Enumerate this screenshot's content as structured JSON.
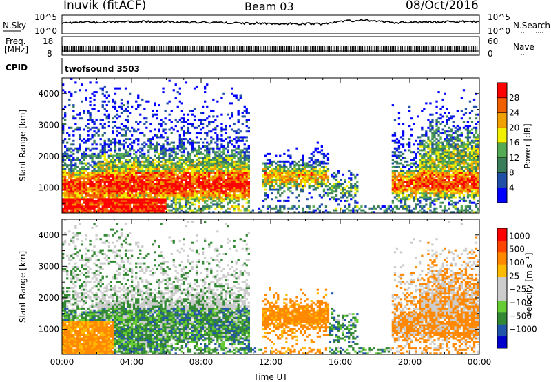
{
  "header": {
    "station": "Inuvik (fitACF)",
    "beam": "Beam 03",
    "date": "08/Oct/2016"
  },
  "sky_panel": {
    "left_label": "N.Sky",
    "right_label": "N.Search",
    "left_ticks": [
      "10^5",
      "10^0"
    ],
    "right_ticks": [
      "10^5",
      "10^0"
    ]
  },
  "freq_panel": {
    "left_label_1": "Freq.",
    "left_label_2": "[MHz]",
    "left_ticks": [
      "18",
      "8"
    ],
    "right_label": "Nave",
    "right_ticks": [
      "60",
      "0"
    ]
  },
  "cpid_panel": {
    "label": "CPID",
    "value": "twofsound 3503"
  },
  "colors": {
    "power": [
      "#0000ff",
      "#1f4fa6",
      "#3a7d5a",
      "#55aa55",
      "#f0f000",
      "#f0a000",
      "#f06000",
      "#ff0000"
    ],
    "velocity": [
      "#ff0000",
      "#ff4400",
      "#ff8800",
      "#ffbb00",
      "#cccccc",
      "#cccccc",
      "#66cc33",
      "#338833",
      "#2255aa",
      "#0000cc"
    ]
  },
  "chart_data": [
    {
      "type": "heatmap",
      "title": "",
      "xlabel": "",
      "ylabel": "Slant Range [km]",
      "x_ticks": [
        "00:00",
        "04:00",
        "08:00",
        "12:00",
        "16:00",
        "20:00",
        "00:00"
      ],
      "y_ticks": [
        "1000",
        "2000",
        "3000",
        "4000"
      ],
      "ylim": [
        200,
        4500
      ],
      "colorbar_label": "Power [dB]",
      "colorbar_ticks": [
        "4",
        "8",
        "12",
        "16",
        "20",
        "24",
        "28"
      ],
      "clim": [
        0,
        32
      ]
    },
    {
      "type": "heatmap",
      "title": "",
      "xlabel": "Time UT",
      "ylabel": "Slant Range [km]",
      "x_ticks": [
        "00:00",
        "04:00",
        "08:00",
        "12:00",
        "16:00",
        "20:00",
        "00:00"
      ],
      "y_ticks": [
        "1000",
        "2000",
        "3000",
        "4000"
      ],
      "ylim": [
        200,
        4500
      ],
      "colorbar_label": "Velocity [m s⁻¹]",
      "colorbar_ticks": [
        "1000",
        "500",
        "100",
        "25",
        "−25",
        "−100",
        "−500",
        "−1000"
      ]
    }
  ]
}
